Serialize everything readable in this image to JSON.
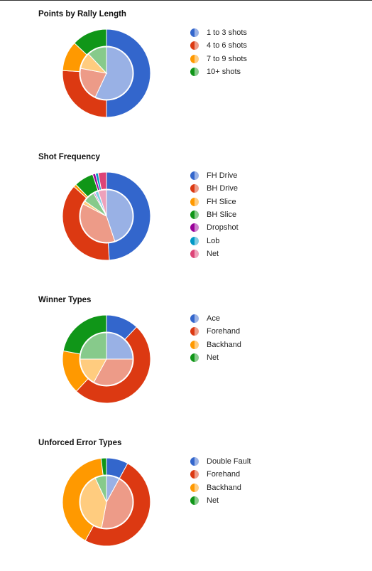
{
  "chart_data": [
    {
      "type": "pie",
      "title": "Points by Rally Length",
      "categories": [
        "1 to 3 shots",
        "4 to 6 shots",
        "7 to 9 shots",
        "10+ shots"
      ],
      "colors": [
        "#3366cc",
        "#dc3912",
        "#ff9900",
        "#109618"
      ],
      "inner_colors": [
        "#99b1e5",
        "#ed9b88",
        "#ffcc7f",
        "#87ca8b"
      ],
      "series": [
        {
          "name": "",
          "values": [
            50,
            26,
            11,
            13
          ]
        },
        {
          "name": "",
          "values": [
            57,
            21,
            10,
            12
          ]
        }
      ]
    },
    {
      "type": "pie",
      "title": "Shot Frequency",
      "categories": [
        "FH Drive",
        "BH Drive",
        "FH Slice",
        "BH Slice",
        "Dropshot",
        "Lob",
        "Net"
      ],
      "colors": [
        "#3366cc",
        "#dc3912",
        "#ff9900",
        "#109618",
        "#990099",
        "#0099c6",
        "#dd4477"
      ],
      "inner_colors": [
        "#99b1e5",
        "#ed9b88",
        "#ffcc7f",
        "#87ca8b",
        "#cc7fcc",
        "#7fcce2",
        "#eea1bb"
      ],
      "series": [
        {
          "name": "",
          "values": [
            48,
            37,
            1,
            7,
            1,
            1,
            3
          ]
        },
        {
          "name": "",
          "values": [
            44,
            37,
            2,
            7,
            1,
            2,
            5
          ]
        }
      ]
    },
    {
      "type": "pie",
      "title": "Winner Types",
      "categories": [
        "Ace",
        "Forehand",
        "Backhand",
        "Net"
      ],
      "colors": [
        "#3366cc",
        "#dc3912",
        "#ff9900",
        "#109618"
      ],
      "inner_colors": [
        "#99b1e5",
        "#ed9b88",
        "#ffcc7f",
        "#87ca8b"
      ],
      "series": [
        {
          "name": "",
          "values": [
            12,
            50,
            16,
            22
          ]
        },
        {
          "name": "",
          "values": [
            25,
            33,
            17,
            25
          ]
        }
      ]
    },
    {
      "type": "pie",
      "title": "Unforced Error Types",
      "categories": [
        "Double Fault",
        "Forehand",
        "Backhand",
        "Net"
      ],
      "colors": [
        "#3366cc",
        "#dc3912",
        "#ff9900",
        "#109618"
      ],
      "inner_colors": [
        "#99b1e5",
        "#ed9b88",
        "#ffcc7f",
        "#87ca8b"
      ],
      "series": [
        {
          "name": "",
          "values": [
            8,
            50,
            40,
            2
          ]
        },
        {
          "name": "",
          "values": [
            8,
            45,
            40,
            7
          ]
        }
      ]
    }
  ]
}
